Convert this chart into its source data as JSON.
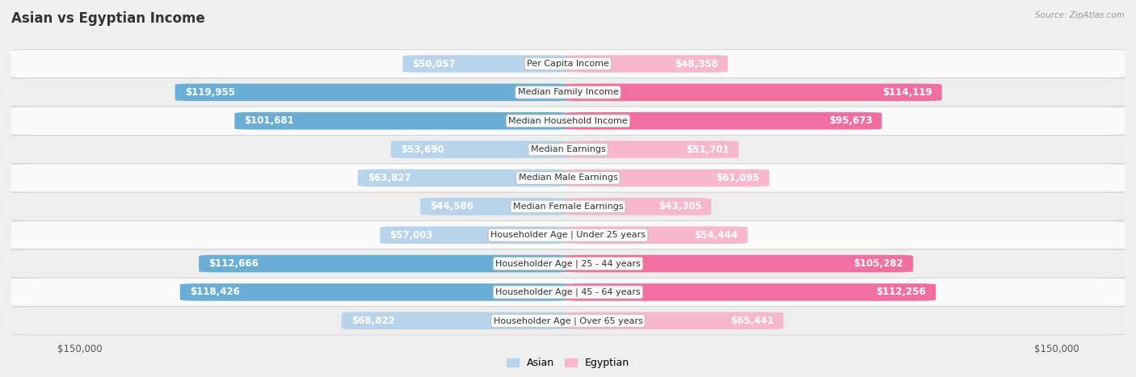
{
  "title": "Asian vs Egyptian Income",
  "source": "Source: ZipAtlas.com",
  "categories": [
    "Per Capita Income",
    "Median Family Income",
    "Median Household Income",
    "Median Earnings",
    "Median Male Earnings",
    "Median Female Earnings",
    "Householder Age | Under 25 years",
    "Householder Age | 25 - 44 years",
    "Householder Age | 45 - 64 years",
    "Householder Age | Over 65 years"
  ],
  "asian_values": [
    50057,
    119955,
    101681,
    53690,
    63827,
    44586,
    57003,
    112666,
    118426,
    68822
  ],
  "egyptian_values": [
    48358,
    114119,
    95673,
    51701,
    61095,
    43305,
    54444,
    105282,
    112256,
    65441
  ],
  "asian_labels": [
    "$50,057",
    "$119,955",
    "$101,681",
    "$53,690",
    "$63,827",
    "$44,586",
    "$57,003",
    "$112,666",
    "$118,426",
    "$68,822"
  ],
  "egyptian_labels": [
    "$48,358",
    "$114,119",
    "$95,673",
    "$51,701",
    "$61,095",
    "$43,305",
    "$54,444",
    "$105,282",
    "$112,256",
    "$65,441"
  ],
  "asian_color_strong": "#6aaed6",
  "asian_color_weak": "#b8d4ea",
  "egyptian_color_strong": "#f06fa0",
  "egyptian_color_weak": "#f7b8ce",
  "max_value": 150000,
  "bar_height": 0.6,
  "bg_color": "#f0f0f0",
  "row_colors": [
    "#fafafa",
    "#eeeeee"
  ],
  "title_fontsize": 12,
  "label_fontsize": 8.5,
  "category_fontsize": 8,
  "axis_label_fontsize": 8.5,
  "strong_threshold": 70000,
  "inside_label_threshold": 30000
}
